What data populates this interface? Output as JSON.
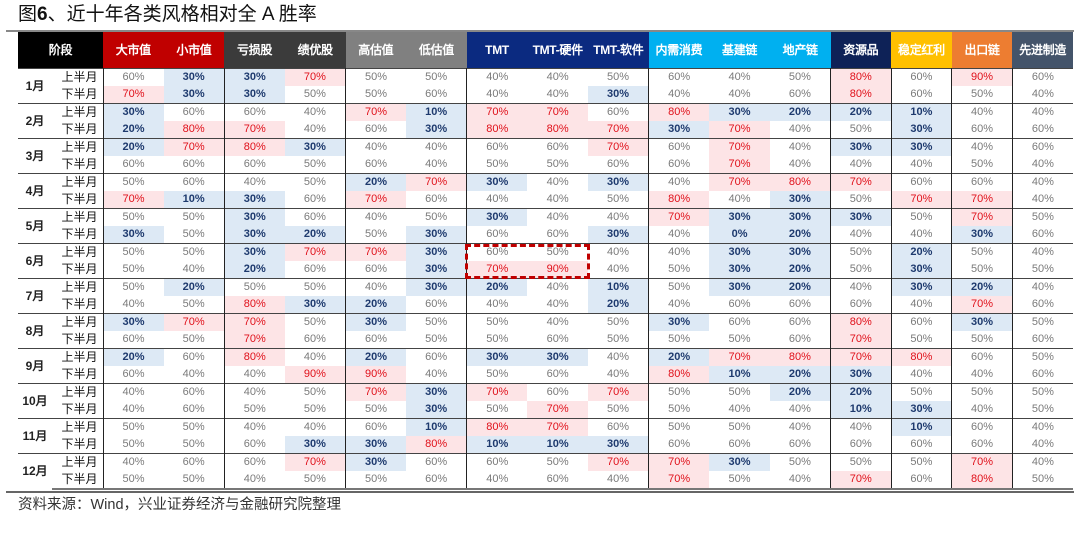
{
  "title_prefix": "图",
  "title_num": "6",
  "title_rest": "、近十年各类风格相对全 A 胜率",
  "header": {
    "stage": "阶段",
    "columns": [
      {
        "label": "大市值",
        "color": "#c00000"
      },
      {
        "label": "小市值",
        "color": "#c00000"
      },
      {
        "label": "亏损股",
        "color": "#3b3b3b"
      },
      {
        "label": "绩优股",
        "color": "#3b3b3b"
      },
      {
        "label": "高估值",
        "color": "#808080"
      },
      {
        "label": "低估值",
        "color": "#808080"
      },
      {
        "label": "TMT",
        "color": "#0b2a80"
      },
      {
        "label": "TMT-硬件",
        "color": "#0b2a80"
      },
      {
        "label": "TMT-软件",
        "color": "#0b2a80"
      },
      {
        "label": "内需消费",
        "color": "#00b0f0"
      },
      {
        "label": "基建链",
        "color": "#00b0f0"
      },
      {
        "label": "地产链",
        "color": "#00b0f0"
      },
      {
        "label": "资源品",
        "color": "#0e2257"
      },
      {
        "label": "稳定红利",
        "color": "#ffc000"
      },
      {
        "label": "出口链",
        "color": "#ed7d31"
      },
      {
        "label": "先进制造",
        "color": "#44546a"
      }
    ]
  },
  "highlight": {
    "high_min": 70,
    "low_max": 30,
    "high_color": "#e0101a",
    "low_color": "#1e3a6e"
  },
  "months": [
    {
      "month": "1月",
      "halves": [
        {
          "label": "上半月",
          "values": [
            60,
            30,
            30,
            70,
            50,
            50,
            40,
            40,
            50,
            60,
            40,
            50,
            80,
            60,
            90,
            60
          ]
        },
        {
          "label": "下半月",
          "values": [
            70,
            30,
            30,
            50,
            50,
            60,
            40,
            40,
            30,
            40,
            40,
            60,
            80,
            60,
            50,
            40
          ]
        }
      ]
    },
    {
      "month": "2月",
      "halves": [
        {
          "label": "上半月",
          "values": [
            30,
            60,
            60,
            40,
            70,
            10,
            70,
            70,
            60,
            80,
            30,
            20,
            20,
            10,
            40,
            40
          ]
        },
        {
          "label": "下半月",
          "values": [
            20,
            80,
            70,
            40,
            60,
            30,
            80,
            80,
            70,
            30,
            70,
            40,
            50,
            30,
            60,
            60
          ]
        }
      ]
    },
    {
      "month": "3月",
      "halves": [
        {
          "label": "上半月",
          "values": [
            20,
            70,
            80,
            30,
            40,
            40,
            60,
            60,
            70,
            60,
            70,
            40,
            30,
            30,
            40,
            60
          ]
        },
        {
          "label": "下半月",
          "values": [
            60,
            60,
            60,
            50,
            60,
            40,
            50,
            50,
            60,
            60,
            70,
            40,
            40,
            40,
            50,
            40
          ]
        }
      ]
    },
    {
      "month": "4月",
      "halves": [
        {
          "label": "上半月",
          "values": [
            50,
            60,
            40,
            50,
            20,
            70,
            30,
            40,
            30,
            40,
            70,
            80,
            70,
            60,
            60,
            40
          ]
        },
        {
          "label": "下半月",
          "values": [
            70,
            10,
            30,
            60,
            70,
            60,
            40,
            40,
            50,
            80,
            40,
            30,
            50,
            70,
            70,
            40
          ]
        }
      ]
    },
    {
      "month": "5月",
      "halves": [
        {
          "label": "上半月",
          "values": [
            50,
            50,
            30,
            60,
            40,
            50,
            30,
            40,
            40,
            70,
            30,
            30,
            30,
            50,
            70,
            50
          ]
        },
        {
          "label": "下半月",
          "values": [
            30,
            50,
            30,
            20,
            50,
            30,
            60,
            60,
            30,
            40,
            0,
            20,
            40,
            40,
            30,
            60
          ]
        }
      ]
    },
    {
      "month": "6月",
      "halves": [
        {
          "label": "上半月",
          "values": [
            50,
            50,
            30,
            70,
            70,
            30,
            60,
            50,
            40,
            40,
            30,
            30,
            50,
            20,
            50,
            40
          ]
        },
        {
          "label": "下半月",
          "values": [
            50,
            40,
            20,
            60,
            60,
            30,
            70,
            90,
            40,
            50,
            30,
            20,
            50,
            30,
            50,
            50
          ]
        }
      ]
    },
    {
      "month": "7月",
      "halves": [
        {
          "label": "上半月",
          "values": [
            50,
            20,
            50,
            50,
            40,
            30,
            20,
            40,
            10,
            50,
            30,
            20,
            40,
            30,
            20,
            40
          ]
        },
        {
          "label": "下半月",
          "values": [
            40,
            50,
            80,
            30,
            20,
            60,
            40,
            40,
            20,
            40,
            60,
            60,
            60,
            40,
            70,
            60
          ]
        }
      ]
    },
    {
      "month": "8月",
      "halves": [
        {
          "label": "上半月",
          "values": [
            30,
            70,
            70,
            50,
            30,
            50,
            50,
            40,
            50,
            30,
            60,
            60,
            80,
            60,
            30,
            50
          ]
        },
        {
          "label": "下半月",
          "values": [
            60,
            50,
            70,
            60,
            60,
            50,
            50,
            60,
            50,
            50,
            50,
            60,
            70,
            50,
            50,
            60
          ]
        }
      ]
    },
    {
      "month": "9月",
      "halves": [
        {
          "label": "上半月",
          "values": [
            20,
            60,
            80,
            40,
            20,
            60,
            30,
            30,
            40,
            20,
            70,
            80,
            70,
            80,
            60,
            50
          ]
        },
        {
          "label": "下半月",
          "values": [
            60,
            40,
            40,
            90,
            90,
            40,
            50,
            60,
            40,
            80,
            10,
            20,
            30,
            40,
            40,
            60
          ]
        }
      ]
    },
    {
      "month": "10月",
      "halves": [
        {
          "label": "上半月",
          "values": [
            40,
            60,
            40,
            50,
            70,
            30,
            70,
            60,
            70,
            50,
            50,
            20,
            20,
            50,
            50,
            50
          ]
        },
        {
          "label": "下半月",
          "values": [
            40,
            60,
            50,
            50,
            50,
            30,
            50,
            70,
            50,
            50,
            40,
            40,
            10,
            30,
            40,
            50
          ]
        }
      ]
    },
    {
      "month": "11月",
      "halves": [
        {
          "label": "上半月",
          "values": [
            50,
            50,
            40,
            40,
            60,
            10,
            80,
            70,
            60,
            50,
            50,
            40,
            40,
            10,
            60,
            40
          ]
        },
        {
          "label": "下半月",
          "values": [
            50,
            50,
            60,
            30,
            30,
            80,
            10,
            10,
            30,
            60,
            60,
            60,
            60,
            60,
            60,
            40
          ]
        }
      ]
    },
    {
      "month": "12月",
      "halves": [
        {
          "label": "上半月",
          "values": [
            40,
            60,
            60,
            70,
            30,
            60,
            60,
            50,
            70,
            70,
            30,
            50,
            50,
            50,
            70,
            40
          ]
        },
        {
          "label": "下半月",
          "values": [
            50,
            50,
            40,
            50,
            50,
            60,
            40,
            60,
            40,
            70,
            50,
            40,
            70,
            60,
            80,
            50
          ]
        }
      ]
    }
  ],
  "annotation": {
    "month": "6月",
    "columns": [
      "TMT",
      "TMT-硬件"
    ],
    "color": "#c00000"
  },
  "source": "资料来源：Wind，兴业证券经济与金融研究院整理"
}
